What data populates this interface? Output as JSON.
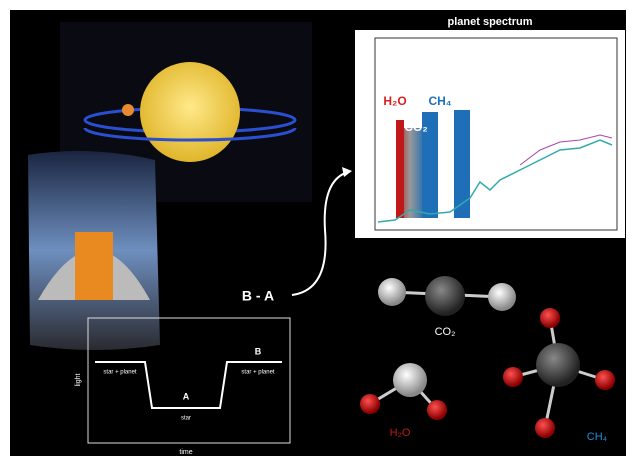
{
  "spectrum_panel": {
    "title": "planet spectrum",
    "band_labels": [
      "H₂O",
      "CO₂",
      "CH₄"
    ]
  },
  "arrow_label": "B - A",
  "molecules": [
    {
      "label": "CO₂"
    },
    {
      "label": "H₂O"
    },
    {
      "label": "CH₄"
    }
  ],
  "light_curve": {
    "y_label": "light",
    "x_label": "time",
    "left_label": "star + planet",
    "dip_label": "A",
    "dip_sublabel": "star",
    "right_label": "B",
    "right_sublabel": "star + planet"
  }
}
